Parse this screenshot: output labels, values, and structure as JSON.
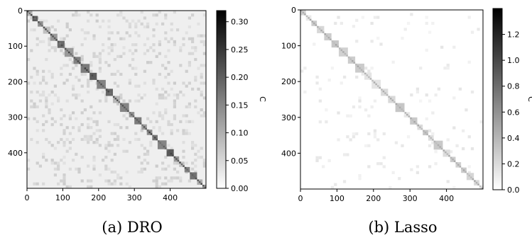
{
  "figure": {
    "panels": [
      {
        "caption": "(a) DRO",
        "colorbar_label": "C"
      },
      {
        "caption": "(b) Lasso",
        "colorbar_label": "C"
      }
    ]
  },
  "chart_data": [
    {
      "type": "heatmap",
      "title": "",
      "matrix_size": 500,
      "xticks": [
        0,
        100,
        200,
        300,
        400
      ],
      "yticks": [
        0,
        100,
        200,
        300,
        400
      ],
      "xlim": [
        0,
        500
      ],
      "ylim": [
        500,
        0
      ],
      "block_diagonal": true,
      "block_boundaries": [
        0,
        15,
        30,
        45,
        65,
        85,
        105,
        130,
        150,
        175,
        195,
        220,
        240,
        260,
        285,
        300,
        320,
        335,
        350,
        365,
        390,
        410,
        425,
        440,
        455,
        475,
        490,
        500
      ],
      "background_value": 0.02,
      "colormap": "gray_r",
      "colorbar": {
        "label": "C",
        "range": [
          0.0,
          0.32
        ],
        "ticks": [
          0.0,
          0.05,
          0.1,
          0.15,
          0.2,
          0.25,
          0.3
        ],
        "tick_labels": [
          "0.00",
          "0.05",
          "0.10",
          "0.15",
          "0.20",
          "0.25",
          "0.30"
        ]
      }
    },
    {
      "type": "heatmap",
      "title": "",
      "matrix_size": 500,
      "xticks": [
        0,
        100,
        200,
        300,
        400
      ],
      "yticks": [
        0,
        100,
        200,
        300,
        400
      ],
      "xlim": [
        0,
        500
      ],
      "ylim": [
        500,
        0
      ],
      "block_diagonal": true,
      "block_boundaries": [
        0,
        15,
        30,
        45,
        65,
        85,
        105,
        130,
        150,
        175,
        195,
        220,
        240,
        260,
        285,
        300,
        320,
        335,
        350,
        365,
        390,
        410,
        425,
        440,
        455,
        475,
        490,
        500
      ],
      "background_value": 0.0,
      "colormap": "gray_r",
      "colorbar": {
        "label": "C",
        "range": [
          0.0,
          1.4
        ],
        "ticks": [
          0.0,
          0.2,
          0.4,
          0.6,
          0.8,
          1.0,
          1.2
        ],
        "tick_labels": [
          "0.0",
          "0.2",
          "0.4",
          "0.6",
          "0.8",
          "1.0",
          "1.2"
        ]
      }
    }
  ]
}
